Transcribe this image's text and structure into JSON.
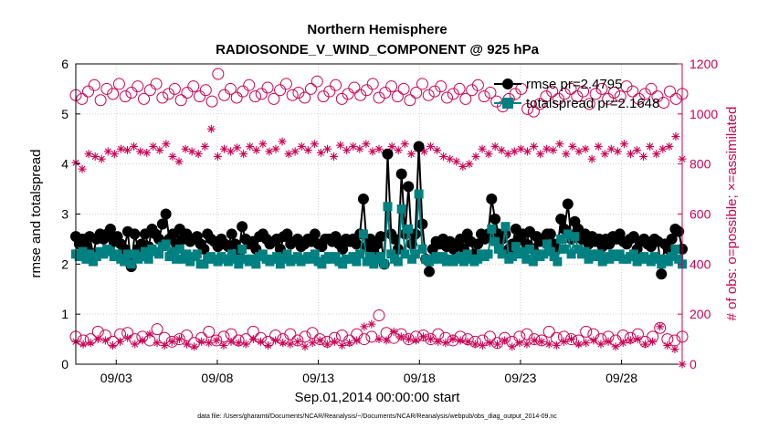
{
  "chart_data": {
    "type": "line",
    "title_line1": "Northern Hemisphere",
    "title_line2": "RADIOSONDE_V_WIND_COMPONENT @ 925 hPa",
    "xlabel": "Sep.01,2014 00:00:00 start",
    "ylabel_left": "rmse and totalspread",
    "ylabel_right": "# of obs: o=possible; ×=assimilated",
    "x_tick_labels": [
      "09/03",
      "09/08",
      "09/13",
      "09/18",
      "09/23",
      "09/28"
    ],
    "x_ticks_days": [
      3,
      8,
      13,
      18,
      23,
      28
    ],
    "xlim_days": [
      1,
      31
    ],
    "ylim_left": [
      0,
      6
    ],
    "yticks_left": [
      "0",
      "1",
      "2",
      "3",
      "4",
      "5",
      "6"
    ],
    "ylim_right": [
      0,
      1200
    ],
    "yticks_right": [
      "0",
      "200",
      "400",
      "600",
      "800",
      "1000",
      "1200"
    ],
    "legend": [
      {
        "label": "rmse pr=2.4795",
        "color": "#000000",
        "marker": "circle"
      },
      {
        "label": "totalspread pr=2.1648",
        "color": "#008080",
        "marker": "square"
      }
    ],
    "series": [
      {
        "name": "rmse",
        "axis": "left",
        "color": "#000000",
        "values": [
          2.55,
          2.4,
          2.5,
          2.35,
          2.55,
          2.2,
          2.5,
          2.6,
          2.5,
          2.6,
          2.7,
          2.45,
          2.55,
          2.4,
          2.3,
          2.65,
          1.95,
          2.6,
          2.3,
          2.4,
          2.6,
          2.35,
          2.7,
          2.6,
          2.5,
          2.8,
          3.0,
          2.5,
          2.6,
          2.4,
          2.7,
          2.5,
          2.6,
          2.45,
          2.5,
          2.55,
          2.4,
          2.3,
          2.6,
          2.5,
          2.45,
          2.35,
          2.5,
          2.4,
          2.35,
          2.6,
          2.4,
          2.2,
          2.75,
          2.5,
          2.4,
          2.45,
          2.3,
          2.55,
          2.6,
          2.5,
          2.4,
          2.45,
          2.5,
          2.3,
          2.55,
          2.6,
          2.4,
          2.45,
          2.5,
          2.35,
          2.4,
          2.5,
          2.45,
          2.6,
          2.4,
          2.35,
          2.5,
          2.5,
          2.45,
          2.55,
          2.4,
          2.3,
          2.5,
          2.45,
          2.5,
          2.4,
          2.6,
          3.3,
          2.35,
          2.5,
          2.25,
          2.4,
          2.55,
          2.0,
          4.2,
          2.6,
          2.5,
          2.3,
          3.8,
          2.6,
          3.55,
          2.4,
          2.6,
          4.35,
          2.8,
          2.1,
          1.85,
          2.3,
          2.45,
          2.4,
          2.5,
          2.35,
          2.45,
          2.3,
          2.4,
          2.5,
          2.3,
          2.6,
          2.45,
          2.2,
          2.4,
          2.6,
          2.5,
          2.6,
          3.3,
          2.9,
          2.6,
          2.5,
          2.6,
          2.3,
          2.4,
          2.7,
          2.5,
          2.6,
          2.4,
          2.65,
          2.3,
          2.55,
          2.45,
          2.5,
          2.6,
          2.6,
          2.4,
          2.3,
          2.9,
          2.7,
          3.2,
          2.5,
          2.85,
          2.7,
          2.5,
          2.6,
          2.4,
          2.55,
          2.45,
          2.5,
          2.35,
          2.5,
          2.4,
          2.55,
          2.5,
          2.6,
          2.45,
          2.4,
          2.5,
          2.55,
          2.3,
          2.45,
          2.5,
          2.4,
          2.35,
          2.5,
          2.45,
          1.8,
          2.4,
          2.3,
          2.5,
          2.7,
          2.65,
          2.3
        ]
      },
      {
        "name": "totalspread",
        "axis": "left",
        "color": "#008080",
        "values": [
          2.2,
          2.15,
          2.25,
          2.1,
          2.2,
          2.05,
          2.15,
          2.25,
          2.2,
          2.3,
          2.25,
          2.15,
          2.2,
          2.1,
          2.05,
          2.2,
          2.0,
          2.2,
          2.1,
          2.15,
          2.25,
          2.1,
          2.3,
          2.25,
          2.2,
          2.35,
          2.4,
          2.15,
          2.25,
          2.1,
          2.3,
          2.1,
          2.2,
          2.05,
          2.15,
          2.2,
          2.0,
          2.0,
          2.1,
          2.15,
          2.1,
          2.05,
          2.15,
          2.1,
          2.05,
          2.2,
          2.1,
          2.0,
          2.3,
          2.1,
          2.05,
          2.1,
          2.0,
          2.15,
          2.2,
          2.1,
          2.05,
          2.1,
          2.15,
          2.0,
          2.1,
          2.2,
          2.05,
          2.1,
          2.15,
          2.05,
          2.1,
          2.15,
          2.1,
          2.2,
          2.05,
          2.0,
          2.1,
          2.15,
          2.1,
          2.15,
          2.05,
          2.0,
          2.1,
          2.1,
          2.15,
          2.05,
          2.2,
          2.6,
          2.05,
          2.15,
          2.0,
          2.1,
          2.15,
          2.0,
          3.15,
          2.2,
          2.1,
          2.05,
          3.1,
          2.2,
          2.7,
          2.1,
          2.2,
          3.4,
          2.3,
          2.1,
          2.05,
          2.1,
          2.15,
          2.1,
          2.15,
          2.05,
          2.1,
          2.05,
          2.1,
          2.15,
          2.05,
          2.2,
          2.1,
          2.05,
          2.1,
          2.2,
          2.15,
          2.2,
          2.7,
          2.45,
          2.3,
          2.2,
          2.75,
          2.1,
          2.15,
          2.35,
          2.2,
          2.25,
          2.1,
          2.3,
          2.05,
          2.2,
          2.15,
          2.2,
          2.4,
          2.25,
          2.15,
          2.05,
          2.5,
          2.3,
          2.6,
          2.2,
          2.55,
          2.3,
          2.2,
          2.25,
          2.1,
          2.2,
          2.15,
          2.2,
          2.05,
          2.15,
          2.1,
          2.2,
          2.15,
          2.2,
          2.1,
          2.1,
          2.15,
          2.2,
          2.05,
          2.1,
          2.15,
          2.1,
          2.05,
          2.15,
          2.1,
          2.0,
          2.1,
          2.05,
          2.15,
          2.3,
          2.1,
          2.0
        ]
      },
      {
        "name": "possible",
        "axis": "right",
        "color": "#cc0055",
        "marker": "circle-open",
        "values": [
          1075,
          1060,
          1090,
          1115,
          1055,
          1100,
          1080,
          1120,
          1070,
          1085,
          1110,
          1060,
          1095,
          1120,
          1065,
          1080,
          1100,
          1055,
          1085,
          1110,
          1070,
          1095,
          1050,
          1160,
          1075,
          1100,
          1065,
          1090,
          1115,
          1070,
          1080,
          1105,
          1060,
          1095,
          1120,
          1075,
          1085,
          1065,
          1100,
          1130,
          1070,
          1090,
          1115,
          1060,
          1080,
          1105,
          1075,
          1095,
          1120,
          1065,
          1085,
          1110,
          1070,
          1100,
          1055,
          1085,
          1120,
          1075,
          1090,
          1110,
          1065,
          1080,
          1100,
          1060,
          1095,
          1115,
          1070,
          1085,
          1050,
          1030,
          1060,
          1080,
          1100,
          1020,
          1010,
          1040,
          1070,
          1090,
          1060,
          1080,
          1100,
          1070,
          1090,
          1040,
          1080,
          1100,
          1060,
          1085,
          1070,
          1110,
          1090,
          1060,
          1080,
          1100,
          1070,
          1045,
          1090,
          1060,
          1080
        ]
      },
      {
        "name": "assimilated",
        "axis": "right",
        "color": "#cc0055",
        "marker": "asterisk",
        "values": [
          805,
          780,
          840,
          830,
          820,
          850,
          840,
          860,
          855,
          870,
          850,
          845,
          870,
          855,
          880,
          830,
          810,
          860,
          850,
          840,
          870,
          940,
          830,
          860,
          850,
          865,
          840,
          870,
          855,
          880,
          850,
          860,
          890,
          840,
          850,
          870,
          855,
          880,
          845,
          860,
          830,
          875,
          855,
          870,
          860,
          880,
          850,
          860,
          845,
          870,
          855,
          880,
          840,
          860,
          850,
          870,
          855,
          830,
          820,
          810,
          790,
          800,
          830,
          860,
          840,
          870,
          855,
          840,
          850,
          860,
          850,
          870,
          840,
          860,
          855,
          880,
          840,
          870,
          850,
          860,
          820,
          870,
          840,
          860,
          850,
          880,
          840,
          855,
          830,
          870,
          840,
          860,
          870,
          910,
          820
        ]
      },
      {
        "name": "possible_low",
        "axis": "right",
        "color": "#cc0055",
        "marker": "circle-open",
        "values": [
          110,
          95,
          100,
          130,
          115,
          90,
          120,
          125,
          100,
          110,
          95,
          140,
          105,
          90,
          100,
          115,
          85,
          105,
          130,
          95,
          110,
          120,
          95,
          100,
          130,
          105,
          90,
          115,
          100,
          120,
          95,
          110,
          125,
          100,
          90,
          105,
          115,
          95,
          120,
          100,
          110,
          195,
          125,
          105,
          120,
          100,
          110,
          115,
          100,
          120,
          105,
          95,
          110,
          100,
          90,
          95,
          110,
          85,
          105,
          90,
          110,
          120,
          100,
          95,
          130,
          105,
          110,
          100,
          95,
          130,
          120,
          100,
          110,
          95,
          115,
          105,
          120,
          90,
          110,
          145,
          100,
          95,
          110
        ]
      },
      {
        "name": "assimilated_low",
        "axis": "right",
        "color": "#cc0055",
        "marker": "asterisk",
        "values": [
          90,
          80,
          85,
          100,
          95,
          75,
          90,
          105,
          80,
          95,
          120,
          85,
          75,
          90,
          100,
          80,
          70,
          90,
          85,
          95,
          75,
          90,
          85,
          80,
          100,
          90,
          75,
          95,
          85,
          80,
          90,
          70,
          85,
          95,
          80,
          90,
          75,
          85,
          95,
          150,
          160,
          100,
          95,
          130,
          110,
          100,
          95,
          110,
          100,
          90,
          85,
          100,
          95,
          90,
          80,
          75,
          85,
          80,
          95,
          70,
          85,
          80,
          95,
          90,
          80,
          75,
          90,
          100,
          80,
          85,
          95,
          80,
          90,
          70,
          85,
          95,
          100,
          80,
          90,
          150,
          75,
          60,
          0
        ]
      }
    ],
    "footnote": "data file: /Users/gharamti/Documents/NCAR/Reanalysis/~/Documents/NCAR/Reanalysis/webpub/obs_diag_output_2014-09.nc"
  }
}
